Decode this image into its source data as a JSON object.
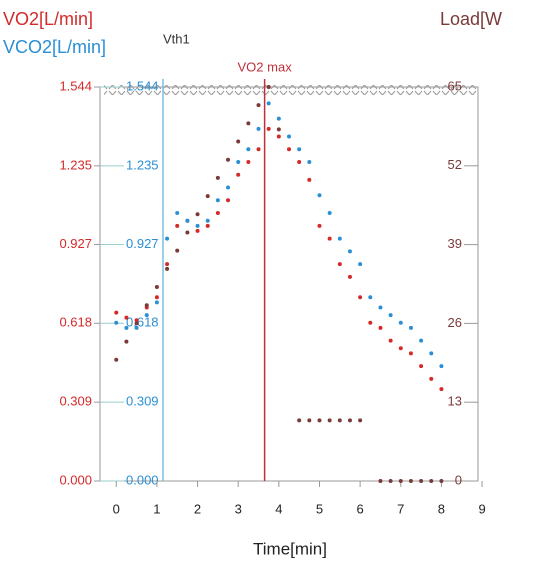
{
  "chart_data": {
    "type": "scatter",
    "xlabel": "Time[min]",
    "x": [
      0,
      0.25,
      0.5,
      0.75,
      1,
      1.25,
      1.5,
      1.75,
      2,
      2.25,
      2.5,
      2.75,
      3,
      3.25,
      3.5,
      3.75,
      4,
      4.25,
      4.5,
      4.75,
      5,
      5.25,
      5.5,
      5.75,
      6,
      6.25,
      6.5,
      6.75,
      7,
      7.25,
      7.5,
      7.75,
      8
    ],
    "series": [
      {
        "name": "VO2[L/min]",
        "color": "#d42a2a",
        "axis": "y",
        "values": [
          0.66,
          0.64,
          0.63,
          0.68,
          0.72,
          0.85,
          1.0,
          1.02,
          0.98,
          1.0,
          1.05,
          1.1,
          1.2,
          1.25,
          1.3,
          1.38,
          1.35,
          1.3,
          1.25,
          1.18,
          1.0,
          0.95,
          0.85,
          0.8,
          0.72,
          0.62,
          0.6,
          0.55,
          0.52,
          0.5,
          0.45,
          0.4,
          0.36
        ]
      },
      {
        "name": "VCO2[L/min]",
        "color": "#2a8fd4",
        "axis": "y2",
        "values": [
          0.62,
          0.6,
          0.6,
          0.65,
          0.7,
          0.95,
          1.05,
          1.02,
          1.0,
          1.02,
          1.1,
          1.15,
          1.25,
          1.3,
          1.38,
          1.48,
          1.42,
          1.35,
          1.3,
          1.25,
          1.12,
          1.05,
          0.95,
          0.9,
          0.85,
          0.72,
          0.68,
          0.65,
          0.62,
          0.6,
          0.55,
          0.5,
          0.45
        ]
      },
      {
        "name": "Load[W",
        "color": "#7a3a3a",
        "axis": "y3",
        "values": [
          20,
          23,
          26,
          29,
          32,
          35,
          38,
          41,
          44,
          47,
          50,
          53,
          56,
          59,
          62,
          65,
          58,
          null,
          10,
          10,
          10,
          10,
          10,
          10,
          10,
          null,
          0,
          0,
          0,
          0,
          0,
          0,
          0
        ]
      }
    ],
    "xlim": [
      -0.4,
      8.9
    ],
    "xticks": [
      0,
      1,
      2,
      3,
      4,
      5,
      6,
      7,
      8,
      9
    ],
    "ylim": [
      0,
      1.544
    ],
    "yticks": [
      {
        "value": 0,
        "label": "0.000"
      },
      0.309,
      0.618,
      0.927,
      1.235,
      1.544
    ],
    "y2lim": [
      0,
      1.544
    ],
    "y2ticks": [
      {
        "value": 0,
        "label": "0.000"
      },
      0.309,
      0.618,
      0.927,
      1.235,
      1.544
    ],
    "y3lim": [
      0,
      65
    ],
    "y3ticks": [
      0,
      13,
      26,
      39,
      52,
      65
    ],
    "annotations": [
      {
        "text": "Vth1",
        "x": 1.15,
        "color": "#7cc0e0"
      },
      {
        "text": "VO2 max",
        "x": 3.65,
        "color": "#c0303a"
      }
    ]
  }
}
